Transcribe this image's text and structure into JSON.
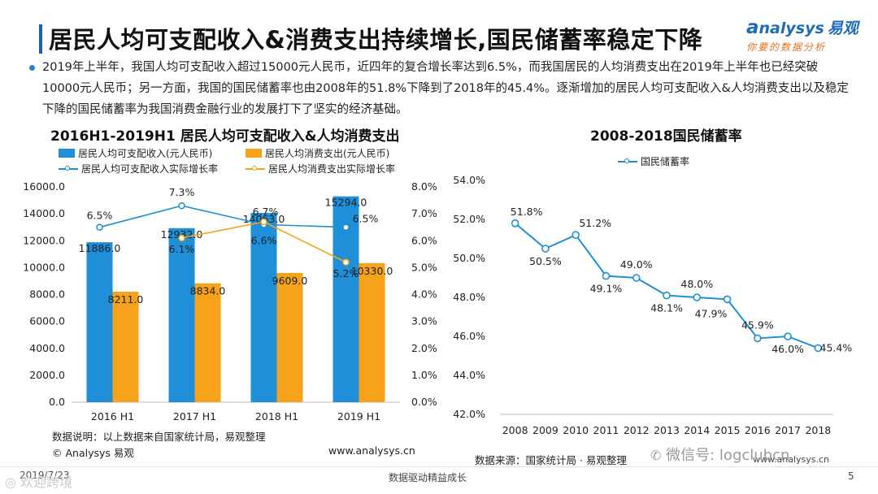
{
  "title": "居民人均可支配收入&消费支出持续增长,国民储蓄率稳定下降",
  "logo": {
    "brand": "nalysys",
    "brand_cn": "易观",
    "tagline": "你要的数据分析",
    "icon": "analysys-logo-icon"
  },
  "paragraph": "2019年上半年，我国人均可支配收入超过15000元人民币，近四年的复合增长率达到6.5%，而我国居民的人均消费支出在2019年上半年也已经突破10000元人民币；另一方面，我国的国民储蓄率也由2008年的51.8%下降到了2018年的45.4%。逐渐增加的居民人均可支配收入&人均消费支出以及稳定下降的国民储蓄率为我国消费金融行业的发展打下了坚实的经济基础。",
  "left_chart_title": "2016H1-2019H1 居民人均可支配收入&人均消费支出",
  "right_chart_title": "2008-2018国民储蓄率",
  "colors": {
    "blue": "#1e8fd8",
    "orange": "#f7a21b",
    "line_blue": "#1e8fd8",
    "line_orange": "#f5a31a",
    "title_bar": "#1f5fa8"
  },
  "chart_data": [
    {
      "type": "bar",
      "title": "2016H1-2019H1 居民人均可支配收入&人均消费支出",
      "categories": [
        "2016 H1",
        "2017 H1",
        "2018 H1",
        "2019 H1"
      ],
      "series": [
        {
          "name": "居民人均可支配收入(元人民币)",
          "kind": "bar",
          "axis": "left",
          "values": [
            11886.0,
            12932.0,
            14063.0,
            15294.0
          ],
          "labels": [
            "11886.0",
            "12932.0",
            "14063.0",
            "15294.0"
          ]
        },
        {
          "name": "居民人均消费支出(元人民币)",
          "kind": "bar",
          "axis": "left",
          "values": [
            8211.0,
            8834.0,
            9609.0,
            10330.0
          ],
          "labels": [
            "8211.0",
            "8834.0",
            "9609.0",
            "10330.0"
          ]
        },
        {
          "name": "居民人均可支配收入实际增长率",
          "kind": "line",
          "axis": "right",
          "values": [
            6.5,
            7.3,
            6.6,
            6.5
          ],
          "labels": [
            "6.5%",
            "7.3%",
            "6.6%",
            "6.5%"
          ]
        },
        {
          "name": "居民人均消费支出实际增长率",
          "kind": "line",
          "axis": "right",
          "values": [
            null,
            6.1,
            6.7,
            5.2
          ],
          "labels": [
            "",
            "6.1%",
            "6.7%",
            "5.2%"
          ]
        }
      ],
      "ylim_left": [
        0,
        16000
      ],
      "yticks_left": [
        "0.0",
        "2000.0",
        "4000.0",
        "6000.0",
        "8000.0",
        "10000.0",
        "12000.0",
        "14000.0",
        "16000.0"
      ],
      "ylim_right": [
        0,
        8
      ],
      "yticks_right": [
        "0.0%",
        "1.0%",
        "2.0%",
        "3.0%",
        "4.0%",
        "5.0%",
        "6.0%",
        "7.0%",
        "8.0%"
      ],
      "legend": "top"
    },
    {
      "type": "line",
      "title": "2008-2018国民储蓄率",
      "x": [
        "2008",
        "2009",
        "2010",
        "2011",
        "2012",
        "2013",
        "2014",
        "2015",
        "2016",
        "2017",
        "2018"
      ],
      "series": [
        {
          "name": "国民储蓄率",
          "values": [
            51.8,
            50.5,
            51.2,
            49.1,
            49.0,
            48.1,
            48.0,
            47.9,
            45.9,
            46.0,
            45.4
          ],
          "labels": [
            "51.8%",
            "50.5%",
            "51.2%",
            "49.1%",
            "49.0%",
            "48.1%",
            "48.0%",
            "47.9%",
            "45.9%",
            "46.0%",
            "45.4%"
          ]
        }
      ],
      "ylim": [
        42,
        54
      ],
      "yticks": [
        "42.0%",
        "44.0%",
        "46.0%",
        "48.0%",
        "50.0%",
        "52.0%",
        "54.0%"
      ],
      "legend": "top-left"
    }
  ],
  "footer": {
    "left_note": "数据说明：以上数据来自国家统计局，易观整理",
    "left_copyright": "© Analysys 易观",
    "left_url": "www.analysys.cn",
    "right_source": "数据来源：国家统计局 · 易观整理",
    "right_url": "www.analysys.cn",
    "wechat": "微信号: logclubcn",
    "date": "2019/7/23",
    "slogan": "数据驱动精益成长",
    "page": "5",
    "watermark_left": "欢迎跨境"
  }
}
